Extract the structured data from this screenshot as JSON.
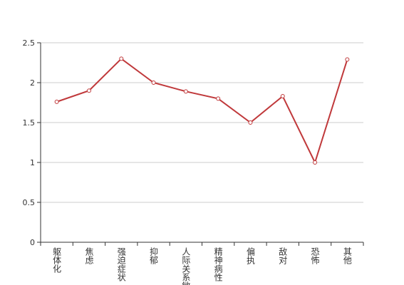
{
  "chart_data": {
    "type": "line",
    "categories": [
      "躯体化",
      "焦虑",
      "强迫症状",
      "抑郁",
      "人际关系敏感",
      "精神病性",
      "偏执",
      "敌对",
      "恐怖",
      "其他"
    ],
    "values": [
      1.76,
      1.9,
      2.3,
      2.0,
      1.89,
      1.8,
      1.5,
      1.83,
      1.0,
      2.29
    ],
    "color": "#c0393b",
    "ylim": [
      0,
      2.5
    ],
    "yticks": [
      0,
      0.5,
      1,
      1.5,
      2,
      2.5
    ],
    "grid": true
  }
}
